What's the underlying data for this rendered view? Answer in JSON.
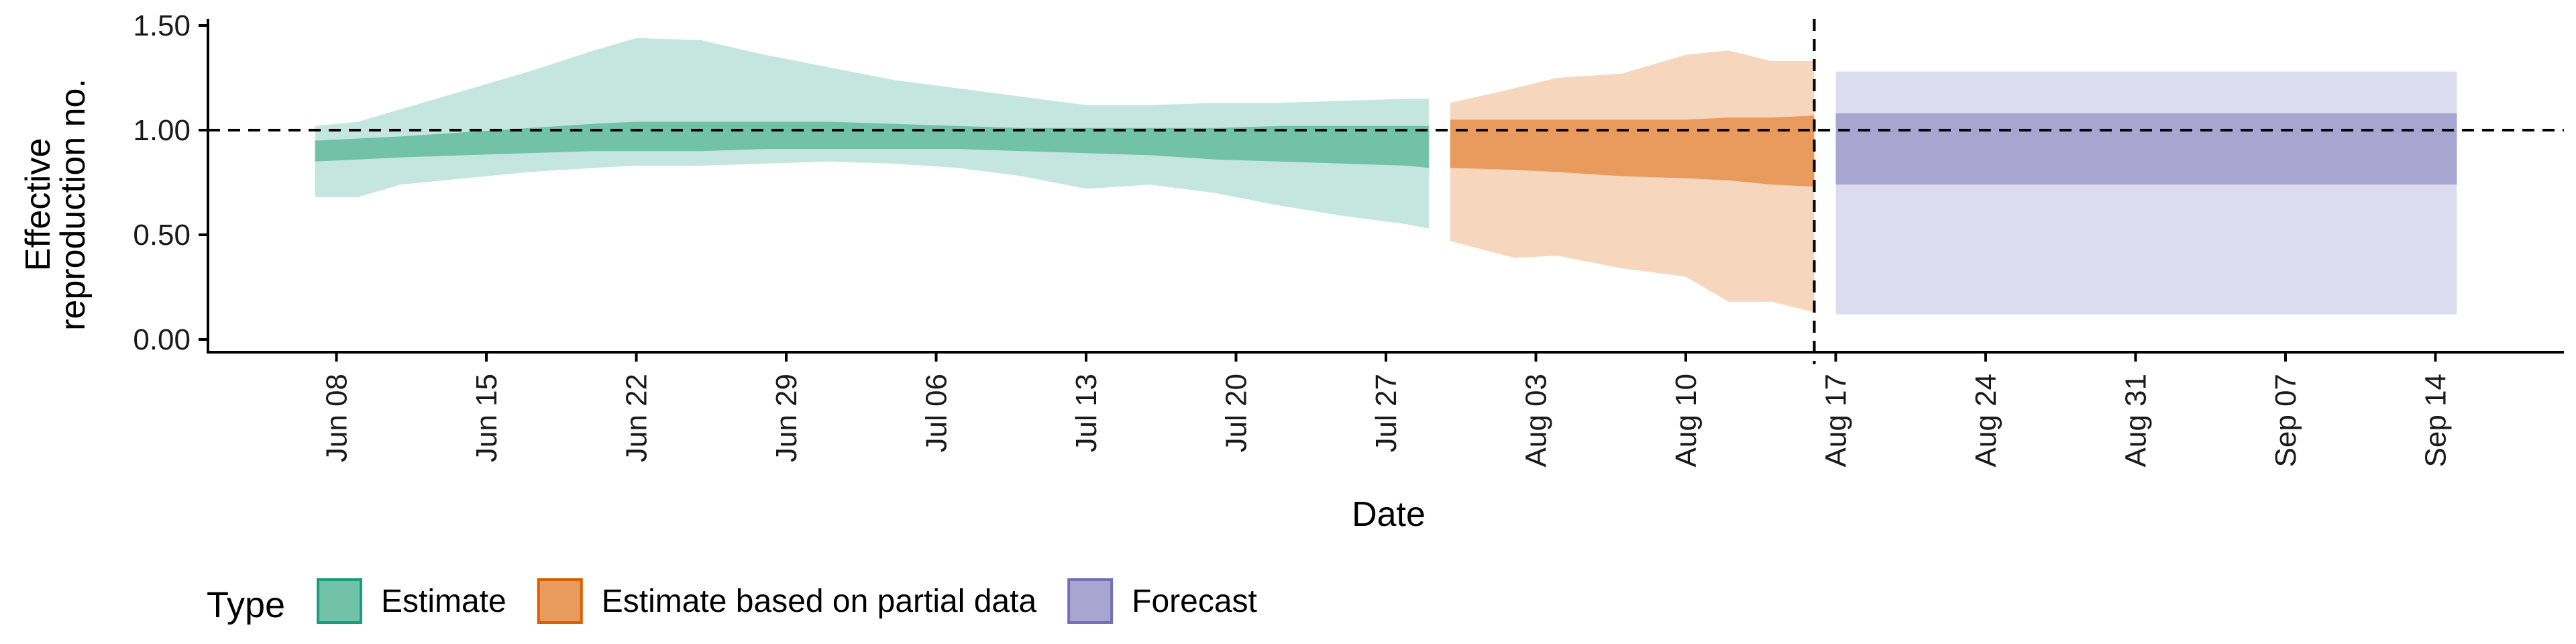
{
  "chart_data": {
    "type": "area",
    "title": "",
    "xlabel": "Date",
    "ylabel_line1": "Effective",
    "ylabel_line2": "reproduction no.",
    "ylim": [
      0,
      1.5
    ],
    "xlim": [
      "2021-06-02",
      "2021-09-20"
    ],
    "y_ticks": [
      {
        "value": 0.0,
        "label": "0.00"
      },
      {
        "value": 0.5,
        "label": "0.50"
      },
      {
        "value": 1.0,
        "label": "1.00"
      },
      {
        "value": 1.5,
        "label": "1.50"
      }
    ],
    "x_ticks": [
      {
        "date": "2021-06-08",
        "label": "Jun 08"
      },
      {
        "date": "2021-06-15",
        "label": "Jun 15"
      },
      {
        "date": "2021-06-22",
        "label": "Jun 22"
      },
      {
        "date": "2021-06-29",
        "label": "Jun 29"
      },
      {
        "date": "2021-07-06",
        "label": "Jul 06"
      },
      {
        "date": "2021-07-13",
        "label": "Jul 13"
      },
      {
        "date": "2021-07-20",
        "label": "Jul 20"
      },
      {
        "date": "2021-07-27",
        "label": "Jul 27"
      },
      {
        "date": "2021-08-03",
        "label": "Aug 03"
      },
      {
        "date": "2021-08-10",
        "label": "Aug 10"
      },
      {
        "date": "2021-08-17",
        "label": "Aug 17"
      },
      {
        "date": "2021-08-24",
        "label": "Aug 24"
      },
      {
        "date": "2021-08-31",
        "label": "Aug 31"
      },
      {
        "date": "2021-09-07",
        "label": "Sep 07"
      },
      {
        "date": "2021-09-14",
        "label": "Sep 14"
      }
    ],
    "reference_line_y": 1.0,
    "vertical_line_date": "2021-08-16",
    "legend": {
      "title": "Type",
      "position": "bottom-left",
      "items": [
        {
          "key": "estimate",
          "label": "Estimate"
        },
        {
          "key": "partial",
          "label": "Estimate based on partial data"
        },
        {
          "key": "forecast",
          "label": "Forecast"
        }
      ]
    },
    "series": [
      {
        "name": "Estimate",
        "key": "estimate",
        "color_outer": "#c4e6dd",
        "color_inner": "#71c2a7",
        "legend_fill": "#71c2a7",
        "legend_stroke": "#1b9e77",
        "points": [
          {
            "x": "2021-06-07",
            "lo90": 0.68,
            "lo50": 0.85,
            "hi50": 0.95,
            "hi90": 1.02
          },
          {
            "x": "2021-06-09",
            "lo90": 0.68,
            "lo50": 0.86,
            "hi50": 0.96,
            "hi90": 1.04
          },
          {
            "x": "2021-06-11",
            "lo90": 0.74,
            "lo50": 0.87,
            "hi50": 0.97,
            "hi90": 1.1
          },
          {
            "x": "2021-06-14",
            "lo90": 0.77,
            "lo50": 0.88,
            "hi50": 0.99,
            "hi90": 1.19
          },
          {
            "x": "2021-06-17",
            "lo90": 0.8,
            "lo50": 0.89,
            "hi50": 1.01,
            "hi90": 1.28
          },
          {
            "x": "2021-06-20",
            "lo90": 0.82,
            "lo50": 0.9,
            "hi50": 1.03,
            "hi90": 1.38
          },
          {
            "x": "2021-06-22",
            "lo90": 0.83,
            "lo50": 0.9,
            "hi50": 1.04,
            "hi90": 1.44
          },
          {
            "x": "2021-06-25",
            "lo90": 0.83,
            "lo50": 0.9,
            "hi50": 1.04,
            "hi90": 1.43
          },
          {
            "x": "2021-06-28",
            "lo90": 0.84,
            "lo50": 0.91,
            "hi50": 1.04,
            "hi90": 1.36
          },
          {
            "x": "2021-07-01",
            "lo90": 0.85,
            "lo50": 0.91,
            "hi50": 1.04,
            "hi90": 1.3
          },
          {
            "x": "2021-07-04",
            "lo90": 0.84,
            "lo50": 0.91,
            "hi50": 1.03,
            "hi90": 1.24
          },
          {
            "x": "2021-07-07",
            "lo90": 0.82,
            "lo50": 0.91,
            "hi50": 1.02,
            "hi90": 1.2
          },
          {
            "x": "2021-07-10",
            "lo90": 0.78,
            "lo50": 0.9,
            "hi50": 1.01,
            "hi90": 1.16
          },
          {
            "x": "2021-07-13",
            "lo90": 0.72,
            "lo50": 0.89,
            "hi50": 1.01,
            "hi90": 1.12
          },
          {
            "x": "2021-07-16",
            "lo90": 0.74,
            "lo50": 0.88,
            "hi50": 1.01,
            "hi90": 1.12
          },
          {
            "x": "2021-07-19",
            "lo90": 0.7,
            "lo50": 0.86,
            "hi50": 1.01,
            "hi90": 1.13
          },
          {
            "x": "2021-07-22",
            "lo90": 0.64,
            "lo50": 0.85,
            "hi50": 1.02,
            "hi90": 1.13
          },
          {
            "x": "2021-07-25",
            "lo90": 0.59,
            "lo50": 0.84,
            "hi50": 1.02,
            "hi90": 1.14
          },
          {
            "x": "2021-07-28",
            "lo90": 0.55,
            "lo50": 0.83,
            "hi50": 1.02,
            "hi90": 1.15
          },
          {
            "x": "2021-07-29",
            "lo90": 0.53,
            "lo50": 0.82,
            "hi50": 1.02,
            "hi90": 1.15
          }
        ]
      },
      {
        "name": "Estimate based on partial data",
        "key": "partial",
        "color_outer": "#f6d7bd",
        "color_inner": "#e99a5d",
        "legend_fill": "#e99a5d",
        "legend_stroke": "#d95f02",
        "points": [
          {
            "x": "2021-07-30",
            "lo90": 0.47,
            "lo50": 0.82,
            "hi50": 1.05,
            "hi90": 1.13
          },
          {
            "x": "2021-08-02",
            "lo90": 0.39,
            "lo50": 0.81,
            "hi50": 1.05,
            "hi90": 1.2
          },
          {
            "x": "2021-08-04",
            "lo90": 0.4,
            "lo50": 0.8,
            "hi50": 1.05,
            "hi90": 1.25
          },
          {
            "x": "2021-08-07",
            "lo90": 0.34,
            "lo50": 0.78,
            "hi50": 1.05,
            "hi90": 1.27
          },
          {
            "x": "2021-08-10",
            "lo90": 0.3,
            "lo50": 0.77,
            "hi50": 1.05,
            "hi90": 1.36
          },
          {
            "x": "2021-08-12",
            "lo90": 0.18,
            "lo50": 0.76,
            "hi50": 1.06,
            "hi90": 1.38
          },
          {
            "x": "2021-08-14",
            "lo90": 0.18,
            "lo50": 0.74,
            "hi50": 1.06,
            "hi90": 1.33
          },
          {
            "x": "2021-08-16",
            "lo90": 0.13,
            "lo50": 0.73,
            "hi50": 1.07,
            "hi90": 1.33
          }
        ]
      },
      {
        "name": "Forecast",
        "key": "forecast",
        "color_outer": "#dcdcee",
        "color_inner": "#a8a6d1",
        "legend_fill": "#a8a6d1",
        "legend_stroke": "#7570b3",
        "points": [
          {
            "x": "2021-08-17",
            "lo90": 0.12,
            "lo50": 0.74,
            "hi50": 1.08,
            "hi90": 1.28
          },
          {
            "x": "2021-09-15",
            "lo90": 0.12,
            "lo50": 0.74,
            "hi50": 1.08,
            "hi90": 1.28
          }
        ]
      }
    ]
  }
}
